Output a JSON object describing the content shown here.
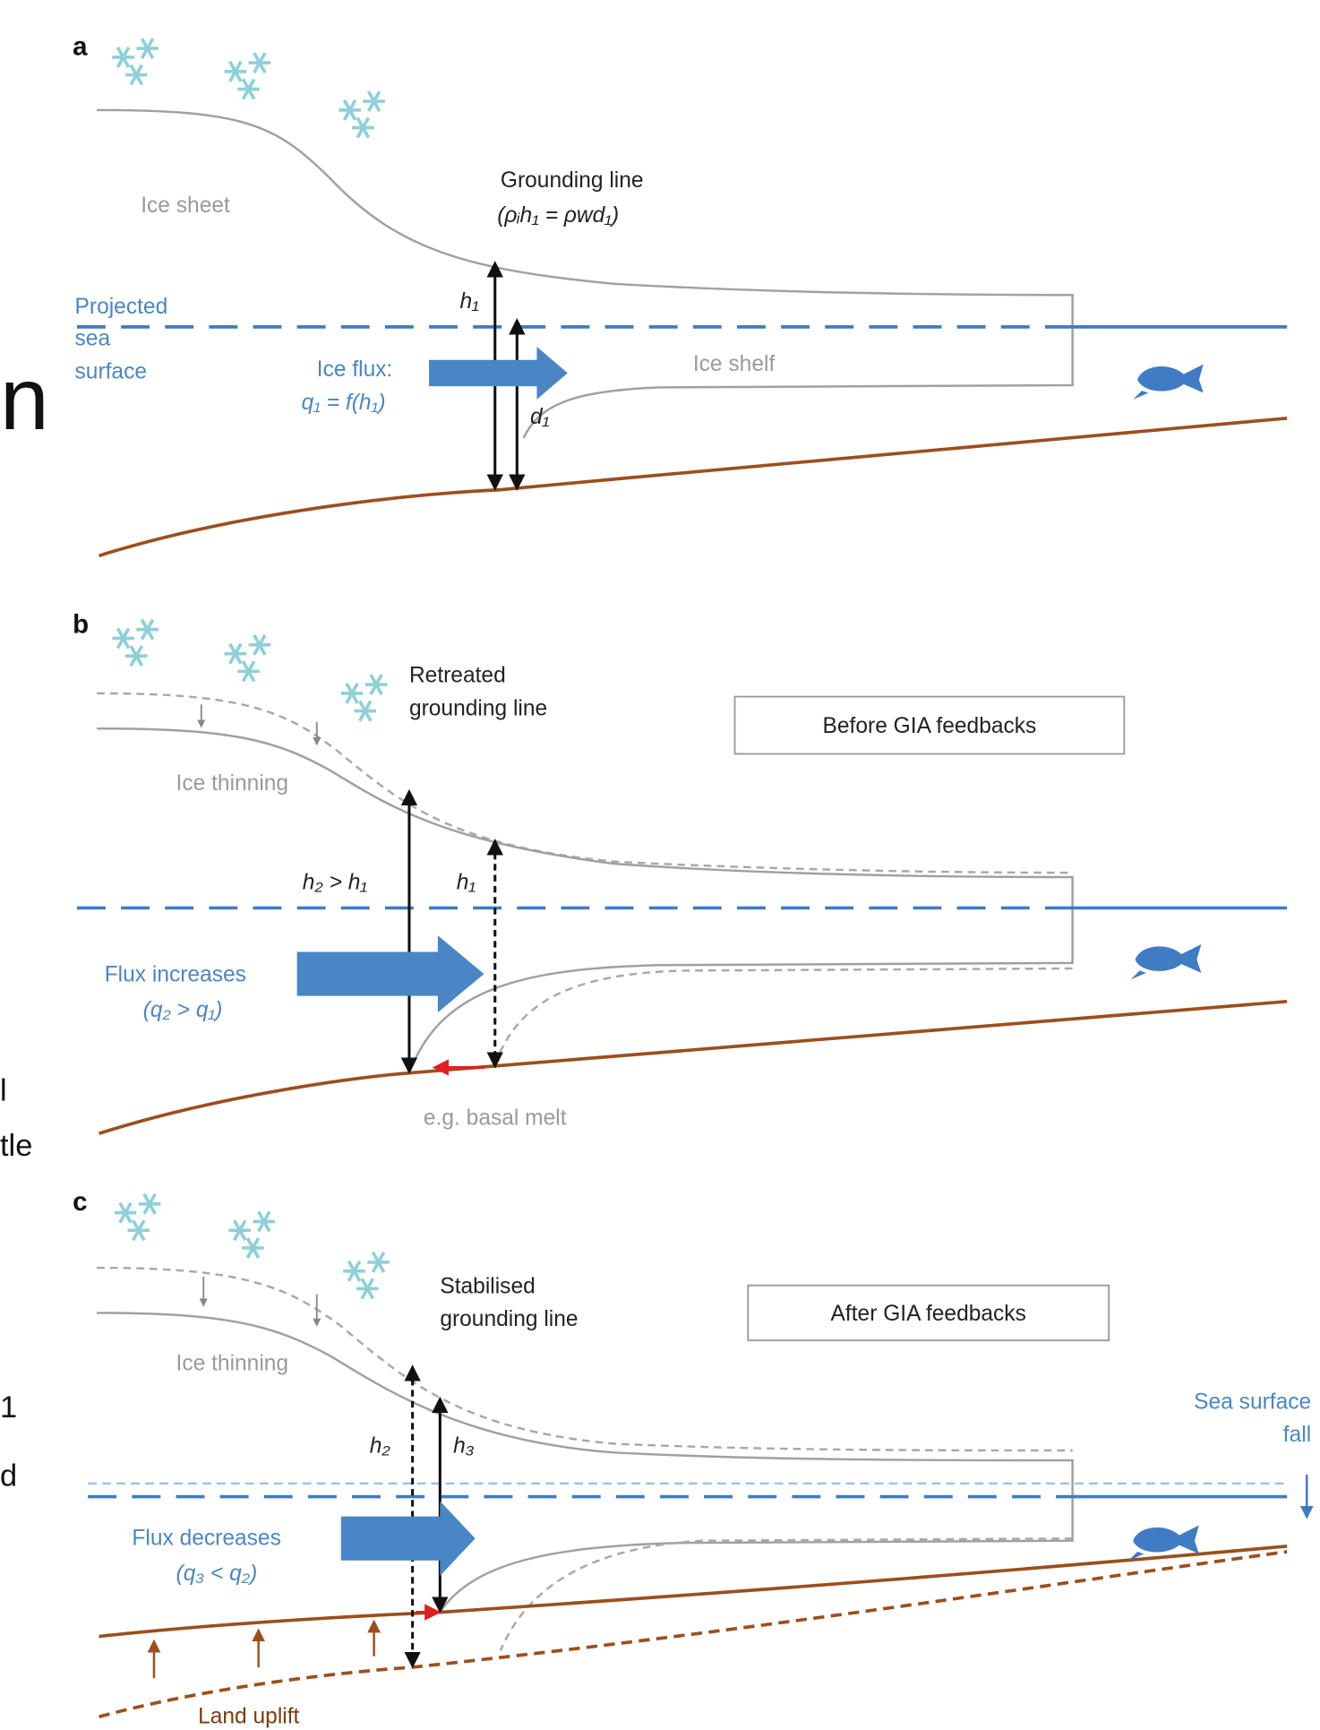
{
  "fragments": [
    "n",
    "l",
    "tle",
    "1",
    "d"
  ],
  "panels": [
    {
      "label": "a",
      "texts": [
        "Ice sheet",
        "Grounding line",
        "(ρᵢh₁ = ρwd₁)",
        "h₁",
        "Projected",
        "sea",
        "surface",
        "Ice flux:",
        "q₁ = f(h₁)",
        "Ice shelf",
        "d₁"
      ]
    },
    {
      "label": "b",
      "texts": [
        "Retreated",
        "grounding line",
        "Before GIA feedbacks",
        "Ice thinning",
        "h₂ > h₁",
        "h₁",
        "Flux increases",
        "(q₂ > q₁)",
        "e.g. basal melt"
      ]
    },
    {
      "label": "c",
      "texts": [
        "Stabilised",
        "grounding line",
        "After GIA feedbacks",
        "Ice thinning",
        "h₂",
        "h₃",
        "Sea surface",
        "fall",
        "Flux decreases",
        "(q₃ < q₂)",
        "Land uplift"
      ]
    }
  ]
}
